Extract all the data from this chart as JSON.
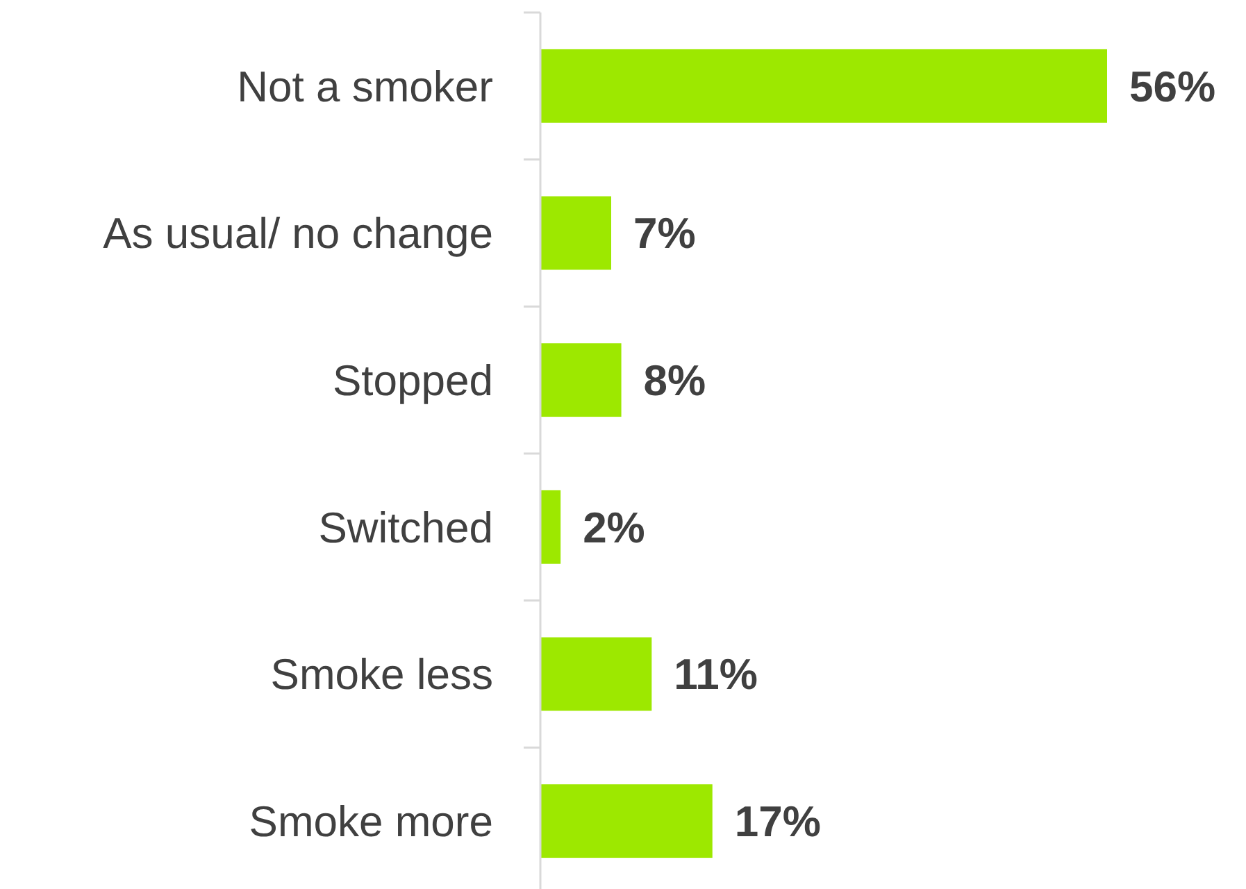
{
  "chart_data": {
    "type": "bar",
    "orientation": "horizontal",
    "categories": [
      "Not a smoker",
      "As usual/ no change",
      "Stopped",
      "Switched",
      "Smoke less",
      "Smoke more"
    ],
    "values": [
      56,
      7,
      8,
      2,
      11,
      17
    ],
    "value_labels": [
      "56%",
      "7%",
      "8%",
      "2%",
      "11%",
      "17%"
    ],
    "color": "#9de800",
    "grid": false
  }
}
